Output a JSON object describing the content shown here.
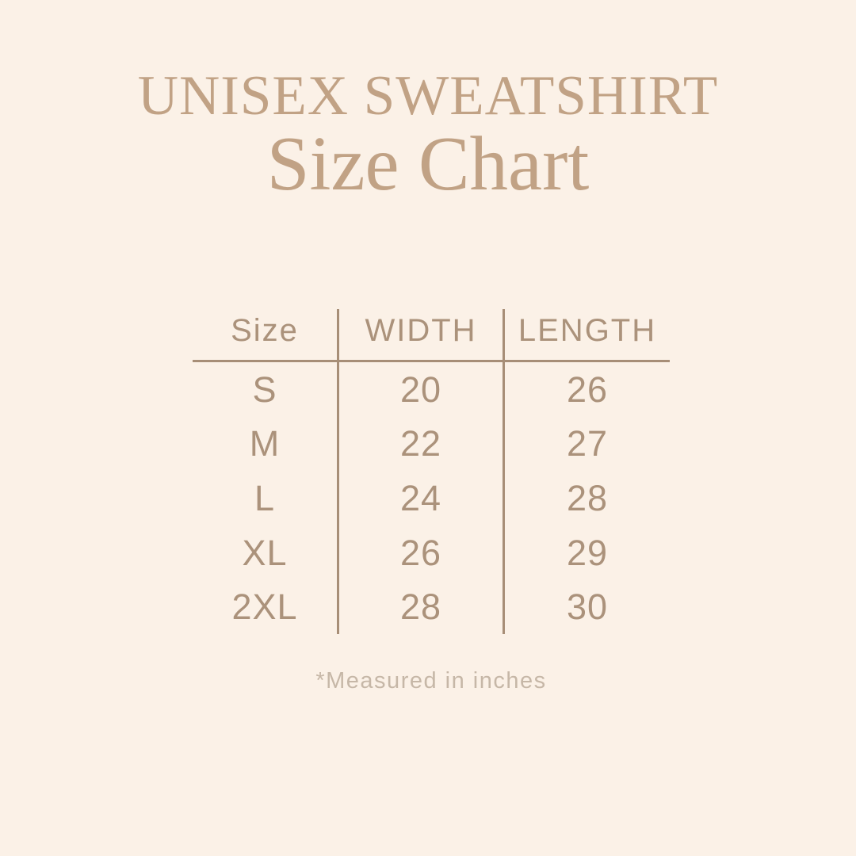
{
  "header": {
    "product": "UNISEX SWEATSHIRT",
    "title": "Size Chart"
  },
  "chart_data": {
    "type": "table",
    "title": "UNISEX SWEATSHIRT Size Chart",
    "columns": [
      "Size",
      "WIDTH",
      "LENGTH"
    ],
    "rows": [
      [
        "S",
        "20",
        "26"
      ],
      [
        "M",
        "22",
        "27"
      ],
      [
        "L",
        "24",
        "28"
      ],
      [
        "XL",
        "26",
        "29"
      ],
      [
        "2XL",
        "28",
        "30"
      ]
    ],
    "footnote": "*Measured in inches"
  },
  "colors": {
    "background": "#fbf1e7",
    "title": "#c1a285",
    "table_text": "#ab927b",
    "line": "#a78e77",
    "footnote": "#c6b7a7"
  }
}
